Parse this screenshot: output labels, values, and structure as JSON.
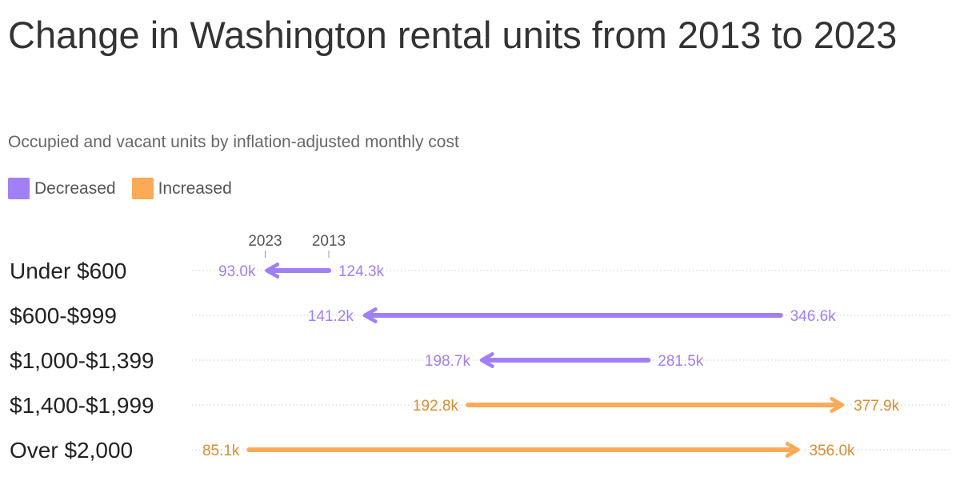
{
  "title": "Change in Washington rental units from 2013 to 2023",
  "subtitle": "Occupied and vacant units by inflation-adjusted monthly cost",
  "legend": {
    "decreased": {
      "label": "Decreased",
      "color": "#a17ff5"
    },
    "increased": {
      "label": "Increased",
      "color": "#fcaa57"
    }
  },
  "year_labels": {
    "from": "2013",
    "to": "2023"
  },
  "chart_data": {
    "type": "arrow",
    "title": "Change in Washington rental units from 2013 to 2023",
    "subtitle": "Occupied and vacant units by inflation-adjusted monthly cost",
    "categories": [
      "Under $600",
      "$600-$999",
      "$1,000-$1,399",
      "$1,400-$1,999",
      "Over $2,000"
    ],
    "series": [
      {
        "name": "2013",
        "values": [
          124.3,
          346.6,
          281.5,
          192.8,
          85.1
        ]
      },
      {
        "name": "2023",
        "values": [
          93.0,
          141.2,
          198.7,
          377.9,
          356.0
        ]
      }
    ],
    "labels_2013": [
      "124.3k",
      "346.6k",
      "281.5k",
      "192.8k",
      "85.1k"
    ],
    "labels_2023": [
      "93.0k",
      "141.2k",
      "198.7k",
      "377.9k",
      "356.0k"
    ],
    "unit": "thousand units",
    "xlim": [
      85.1,
      377.9
    ],
    "grid": "dotted horizontal guides",
    "legend_position": "top-left",
    "colors": {
      "decreased": "#a17ff5",
      "increased": "#fcaa57",
      "decreased_text": "#a17ff5",
      "increased_text": "#d98d33"
    }
  }
}
